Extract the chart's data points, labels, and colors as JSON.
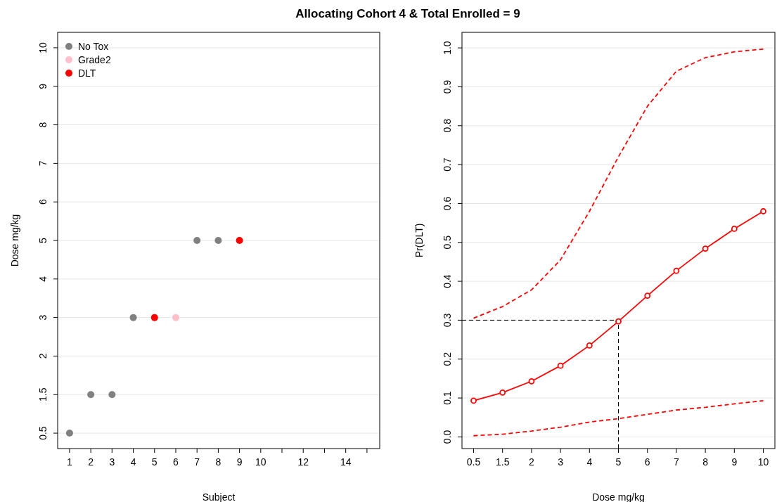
{
  "chart_data": [
    {
      "type": "scatter",
      "orientation": "horizontal",
      "title": "Allocating Cohort 4 & Total Enrolled = 9",
      "xlabel": "Subject",
      "ylabel": "Dose mg/kg",
      "categories": [
        "10",
        "9",
        "8",
        "7",
        "6",
        "5",
        "4",
        "3",
        "2",
        "1.5",
        "0.5"
      ],
      "xlim": [
        0.44,
        15.6
      ],
      "xticks": [
        1,
        2,
        3,
        4,
        5,
        6,
        7,
        8,
        9,
        10,
        {
          "value": 11,
          "label": null
        },
        12,
        {
          "value": 13,
          "label": null
        },
        14,
        {
          "value": 15,
          "label": null
        }
      ],
      "grid": "y",
      "legend": "top left",
      "marker": "circle",
      "series": [
        {
          "name": "No Tox",
          "color": "#808080",
          "x": [
            "0.5",
            "1.5",
            "1.5",
            "3",
            "5",
            "5"
          ],
          "values": [
            1,
            2,
            3,
            4,
            7,
            8
          ]
        },
        {
          "name": "Grade2",
          "color": "#ffc0cb",
          "x": [
            "3"
          ],
          "values": [
            6
          ]
        },
        {
          "name": "DLT",
          "color": "#ff0000",
          "x": [
            "3",
            "5"
          ],
          "values": [
            5,
            9
          ]
        }
      ]
    },
    {
      "type": "line",
      "xlabel": "Dose mg/kg",
      "ylabel": "Pr(DLT)",
      "categories": [
        "0.5",
        "1.5",
        "2",
        "3",
        "4",
        "5",
        "6",
        "7",
        "8",
        "9",
        "10"
      ],
      "ylim": [
        -0.03,
        1.04
      ],
      "yticks": [
        {
          "value": 0,
          "label": "0.0"
        },
        0.1,
        0.2,
        0.3,
        0.4,
        0.5,
        0.6,
        0.7,
        0.8,
        0.9,
        {
          "value": 1,
          "label": "1.0"
        }
      ],
      "grid": "y",
      "series": [
        {
          "color": "#ff0000",
          "line_style": "solid",
          "marker": "circle",
          "values": [
            0.093,
            0.114,
            0.143,
            0.183,
            0.235,
            0.297,
            0.363,
            0.427,
            0.484,
            0.535,
            0.58
          ]
        },
        {
          "color": "#ff0000",
          "line_style": "dashed",
          "marker": "none",
          "values": [
            0.305,
            0.335,
            0.378,
            0.455,
            0.58,
            0.72,
            0.85,
            0.94,
            0.975,
            0.99,
            0.997
          ]
        },
        {
          "color": "#ff0000",
          "line_style": "dashed",
          "marker": "none",
          "values": [
            0.003,
            0.007,
            0.015,
            0.025,
            0.038,
            0.047,
            0.058,
            0.069,
            0.076,
            0.085,
            0.093
          ]
        }
      ],
      "ref_lines": [
        {
          "axis": "y",
          "value": 0.3,
          "color": "#000000",
          "line_style": "dashed"
        },
        {
          "axis": "x",
          "value": "5",
          "color": "#000000",
          "line_style": "dashed"
        }
      ]
    }
  ]
}
